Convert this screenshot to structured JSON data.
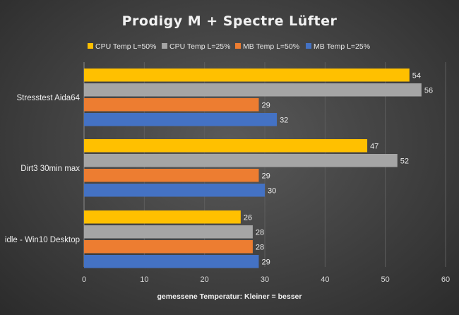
{
  "chart_data": {
    "type": "bar",
    "orientation": "horizontal",
    "title": "Prodigy M + Spectre Lüfter",
    "xlabel": "gemessene Temperatur: Kleiner = besser",
    "ylabel": "",
    "categories": [
      "Stresstest Aida64",
      "Dirt3 30min max",
      "idle - Win10 Desktop"
    ],
    "series": [
      {
        "name": "CPU Temp L=50%",
        "color": "#ffc000",
        "values": [
          54,
          47,
          26
        ]
      },
      {
        "name": "CPU Temp L=25%",
        "color": "#a5a5a5",
        "values": [
          56,
          52,
          28
        ]
      },
      {
        "name": "MB Temp L=50%",
        "color": "#ed7d31",
        "values": [
          29,
          29,
          28
        ]
      },
      {
        "name": "MB Temp L=25%",
        "color": "#4472c4",
        "values": [
          32,
          30,
          29
        ]
      }
    ],
    "xlim": [
      0,
      60
    ],
    "xticks": [
      0,
      10,
      20,
      30,
      40,
      50,
      60
    ],
    "grid": true,
    "legend_position": "top"
  }
}
